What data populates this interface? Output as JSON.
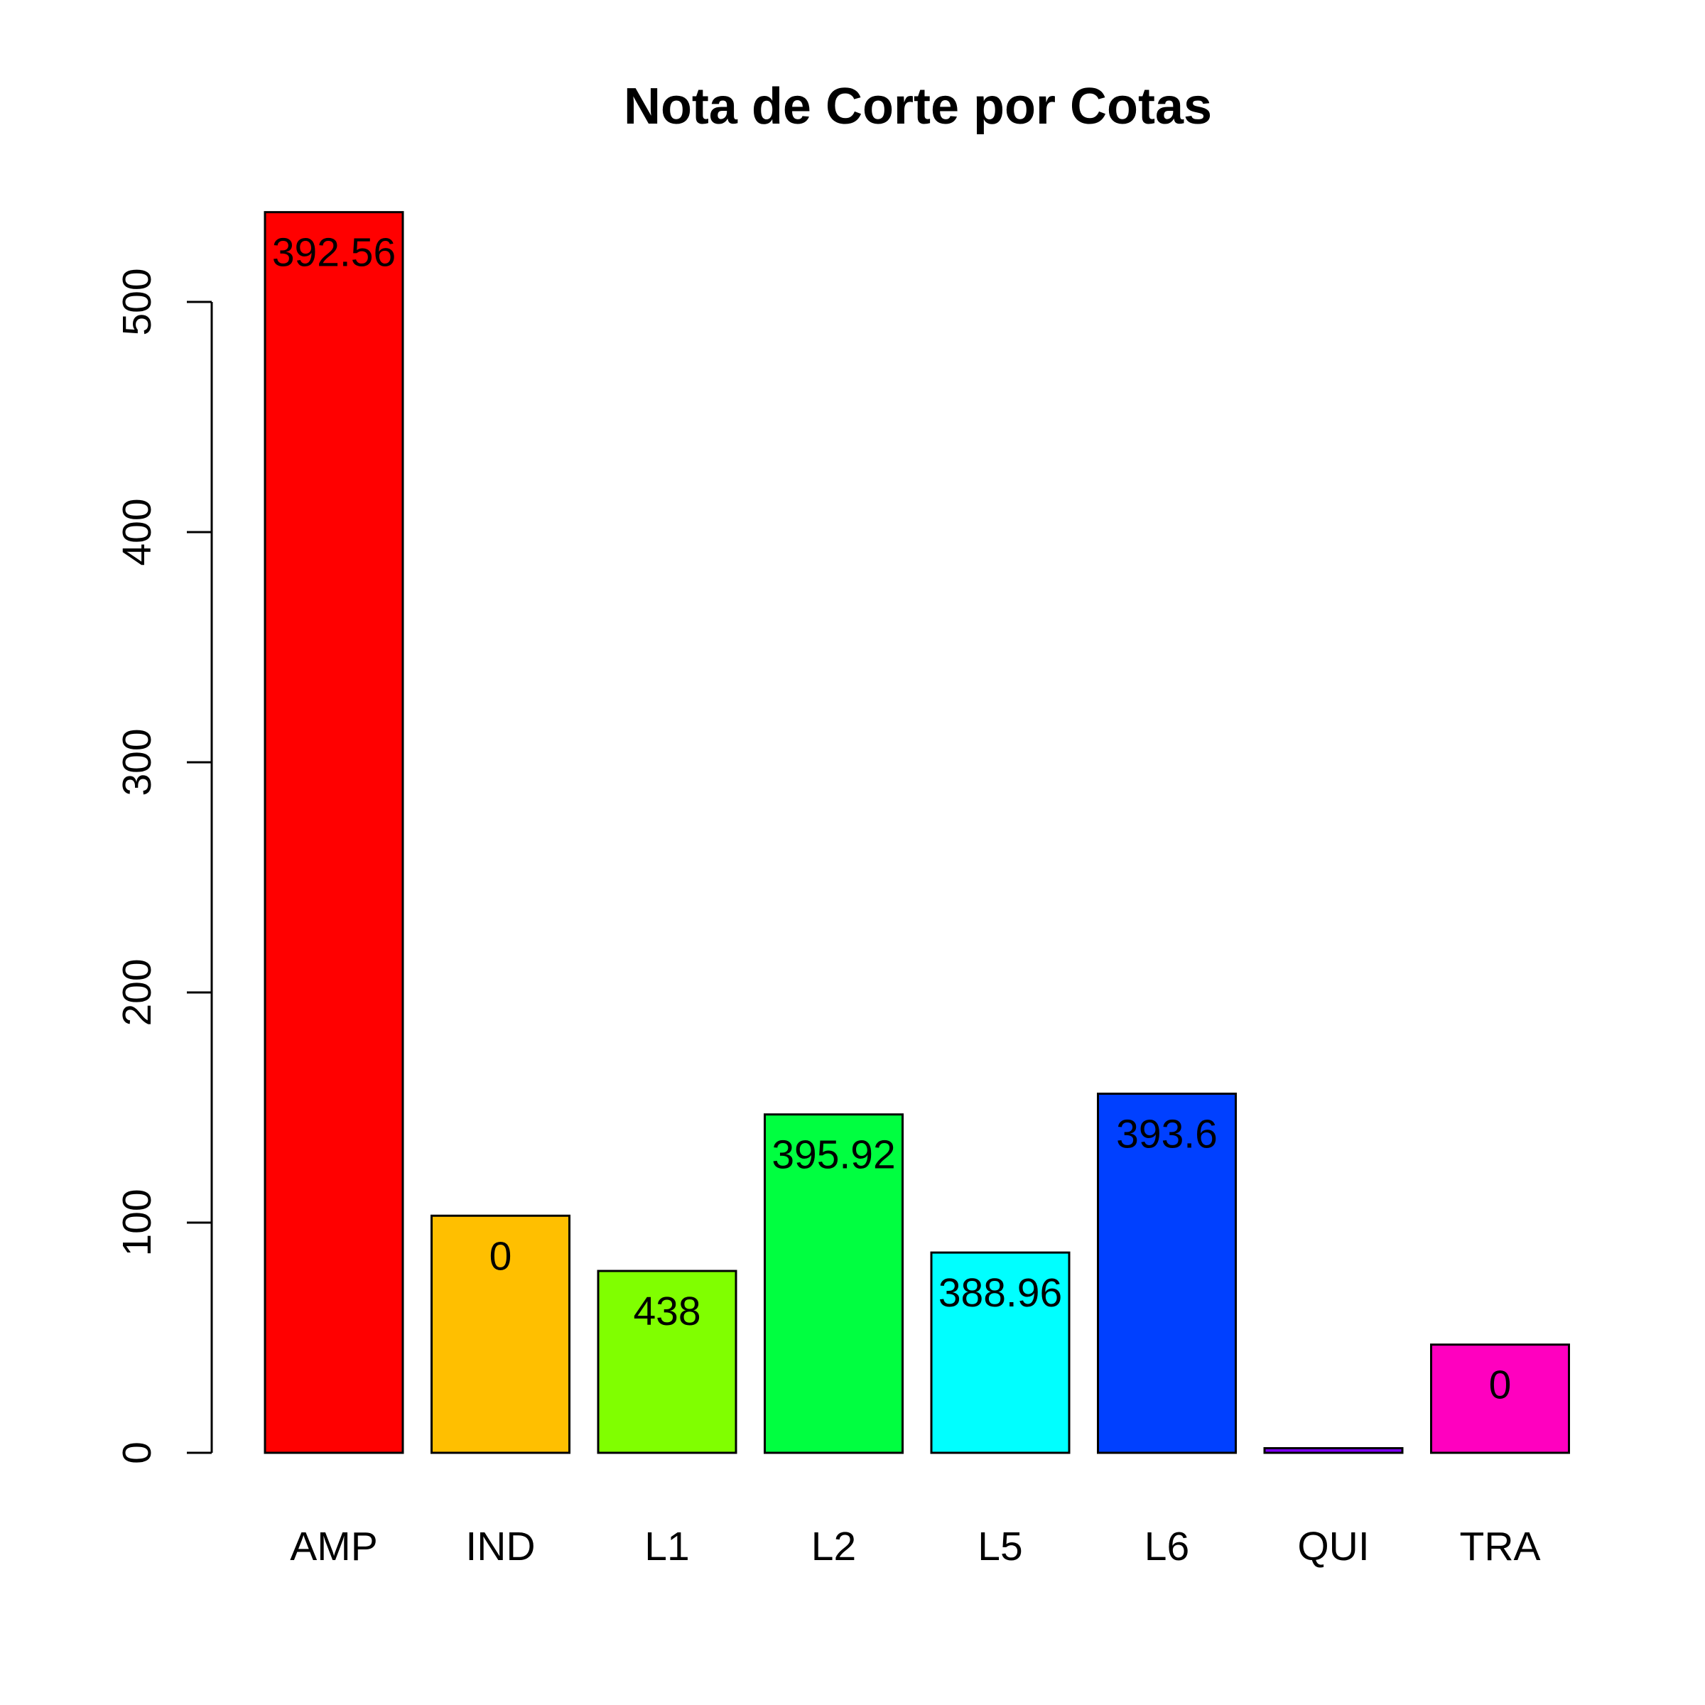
{
  "chart_data": {
    "type": "bar",
    "title": "Nota de Corte por Cotas",
    "xlabel": "",
    "ylabel": "",
    "categories": [
      "AMP",
      "IND",
      "L1",
      "L2",
      "L5",
      "L6",
      "QUI",
      "TRA"
    ],
    "values": [
      539,
      103,
      79,
      147,
      87,
      156,
      2,
      47
    ],
    "bar_labels": [
      "392.56",
      "0",
      "438",
      "395.92",
      "388.96",
      "393.6",
      "",
      "0"
    ],
    "colors": [
      "#FF0000",
      "#FFBF00",
      "#80FF00",
      "#00FF40",
      "#00FFFF",
      "#0040FF",
      "#7F00FF",
      "#FF00BF"
    ],
    "ylim": [
      0,
      540
    ],
    "yticks": [
      0,
      100,
      200,
      300,
      400,
      500
    ],
    "grid": false,
    "legend": "none"
  }
}
